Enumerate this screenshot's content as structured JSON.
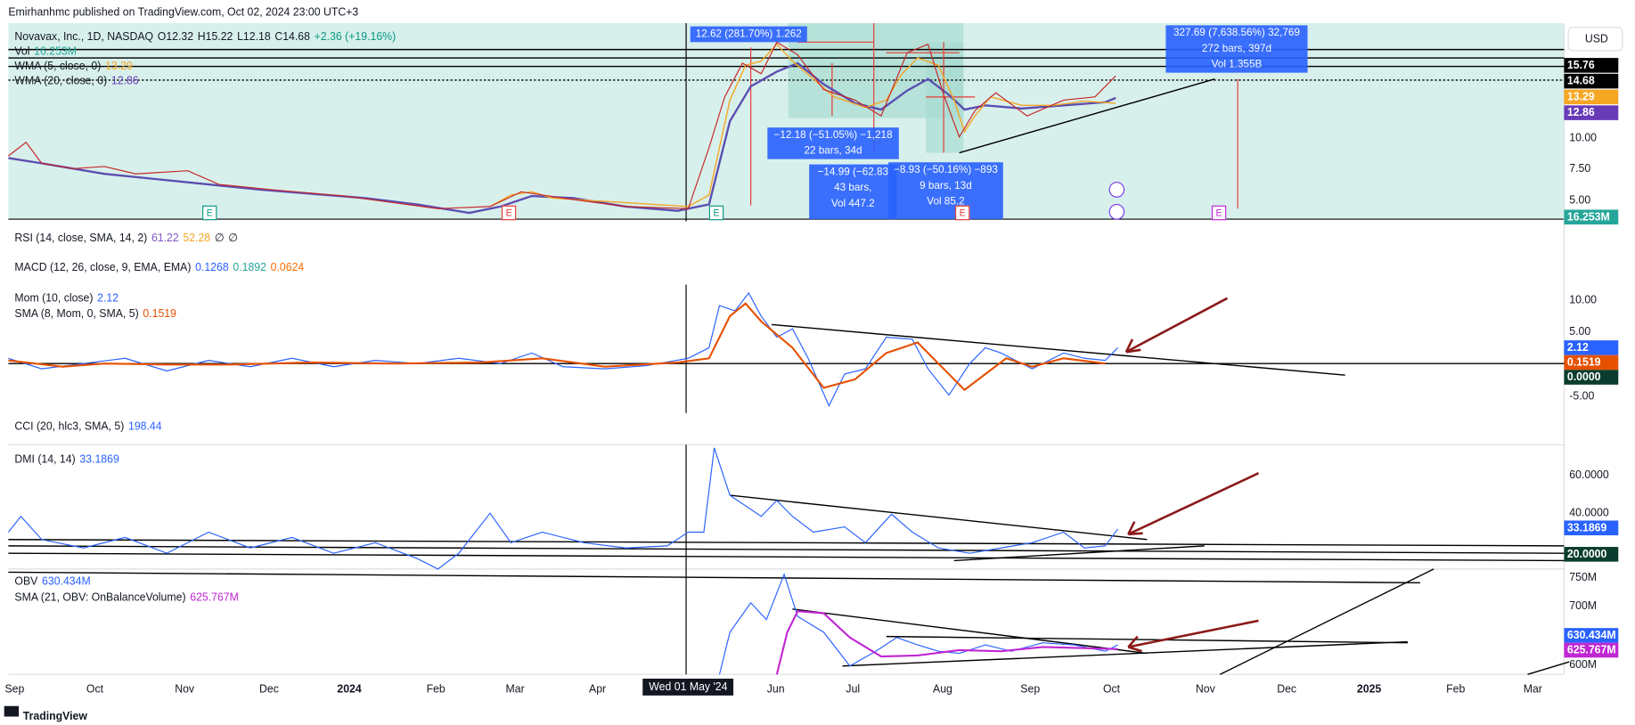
{
  "header": {
    "publisher": "Emirhanhmc published on TradingView.com, Oct 02, 2024 23:00 UTC+3"
  },
  "main_pane": {
    "legend": {
      "symbol": "Novavax, Inc., 1D, NASDAQ",
      "open": "O12.32",
      "high": "H15.22",
      "low": "L12.18",
      "close": "C14.68",
      "change": "+2.36 (+19.16%)",
      "vol_name": "Vol",
      "vol_value": "16.253M",
      "wma5_name": "WMA (5, close, 0)",
      "wma5_value": "13.29",
      "wma20_name": "WMA (20, close, 0)",
      "wma20_value": "12.86"
    },
    "axis": {
      "currency": "USD",
      "labels": [
        "10.00",
        "7.50",
        "5.00"
      ],
      "badges": [
        "15.76",
        "14.68",
        "13.29",
        "12.86",
        "16.253M"
      ]
    },
    "measures": [
      [
        "12.62 (281.70%) 1.262"
      ],
      [
        "−12.18 (−51.05%) −1,218",
        "22 bars, 34d"
      ],
      [
        "−14.99 (−62.83",
        "43 bars,",
        "Vol 447.2"
      ],
      [
        "−8.93 (−50.16%) −893",
        "9 bars, 13d",
        "Vol 85.2"
      ],
      [
        "327.69 (7,638.56%) 32,769",
        "272 bars, 397d",
        "Vol 1.355B"
      ]
    ],
    "events": [
      "E",
      "E",
      "E",
      "E",
      "E"
    ]
  },
  "rsi": {
    "name": "RSI (14, close, SMA, 14, 2)",
    "values": [
      "61.22",
      "52.28",
      "∅",
      "∅"
    ]
  },
  "macd": {
    "name": "MACD (12, 26, close, 9, EMA, EMA)",
    "values": [
      "0.1268",
      "0.1892",
      "0.0624"
    ]
  },
  "mom": {
    "name": "Mom (10, close)",
    "value": "2.12",
    "sma_name": "SMA (8, Mom, 0, SMA, 5)",
    "sma_value": "0.1519",
    "axis": [
      "10.00",
      "5.00",
      "-5.00"
    ],
    "badges": [
      "2.12",
      "0.1519",
      "0.0000"
    ]
  },
  "cci": {
    "name": "CCI (20, hlc3, SMA, 5)",
    "value": "198.44"
  },
  "dmi": {
    "name": "DMI (14, 14)",
    "value": "33.1869",
    "axis": [
      "60.0000",
      "40.0000"
    ],
    "badges": [
      "33.1869",
      "20.0000"
    ]
  },
  "obv": {
    "name": "OBV",
    "value": "630.434M",
    "sma_name": "SMA (21, OBV: OnBalanceVolume)",
    "sma_value": "625.767M",
    "axis": [
      "750M",
      "700M",
      "600M"
    ],
    "badges": [
      "630.434M",
      "625.767M"
    ]
  },
  "time_axis": [
    "Sep",
    "Oct",
    "Nov",
    "Dec",
    "2024",
    "Feb",
    "Mar",
    "Apr",
    "Wed 01 May '24",
    "Jun",
    "Jul",
    "Aug",
    "Sep",
    "Oct",
    "Nov",
    "Dec",
    "2025",
    "Feb",
    "Mar"
  ],
  "footer": {
    "brand": "TradingView"
  }
}
